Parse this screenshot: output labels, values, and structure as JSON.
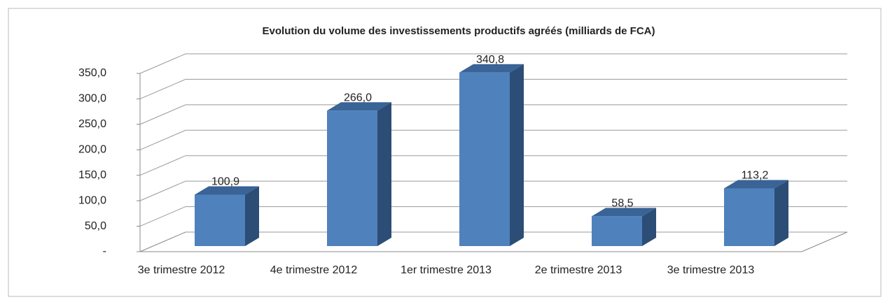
{
  "chart_data": {
    "type": "bar3d",
    "title": "Evolution du volume des investissements productifs agréés (milliards de FCA)",
    "categories": [
      "3e trimestre 2012",
      "4e trimestre 2012",
      "1er trimestre 2013",
      "2e trimestre 2013",
      "3e trimestre 2013"
    ],
    "values": [
      100.9,
      266.0,
      340.8,
      58.5,
      113.2
    ],
    "value_labels": [
      "100,9",
      "266,0",
      "340,8",
      "58,5",
      "113,2"
    ],
    "color": "#4f81bd",
    "ylim": [
      0,
      350
    ],
    "yticks": [
      {
        "value": 0,
        "label": "-"
      },
      {
        "value": 50,
        "label": "50,0"
      },
      {
        "value": 100,
        "label": "100,0"
      },
      {
        "value": 150,
        "label": "150,0"
      },
      {
        "value": 200,
        "label": "200,0"
      },
      {
        "value": 250,
        "label": "250,0"
      },
      {
        "value": 300,
        "label": "300,0"
      },
      {
        "value": 350,
        "label": "350,0"
      }
    ],
    "grid": true
  }
}
